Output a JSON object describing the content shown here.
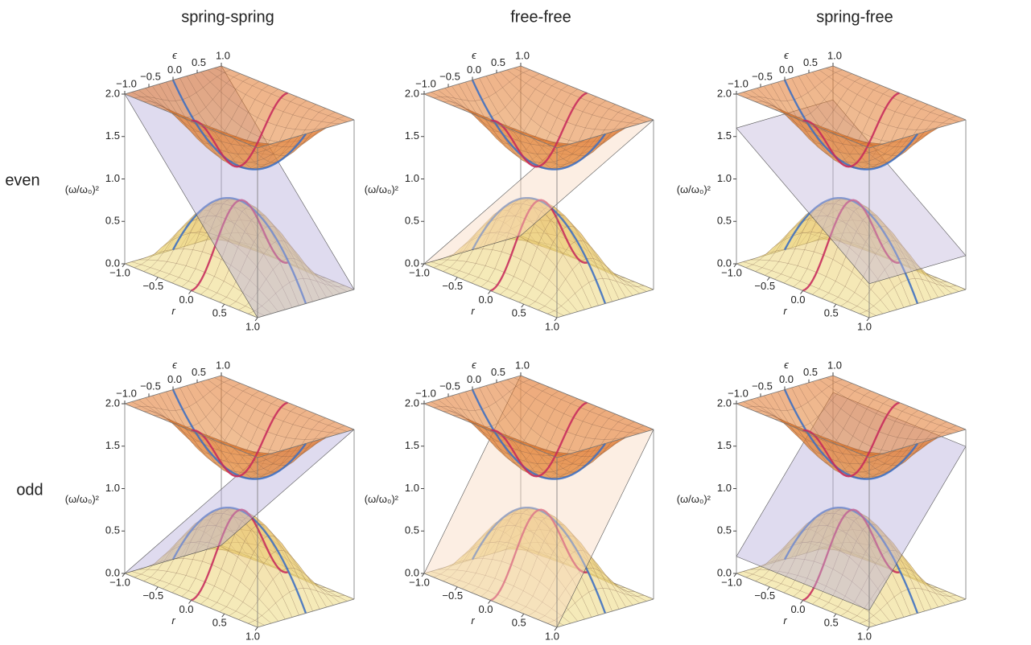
{
  "column_titles": [
    "spring-spring",
    "free-free",
    "spring-free"
  ],
  "row_labels": [
    "even",
    "odd"
  ],
  "chart_data": [
    {
      "type": "surface",
      "xlabel": "r",
      "ylabel": "ϵ",
      "zlabel": "(ω/ω₀)²",
      "xlim": [
        -1,
        1
      ],
      "ylim": [
        -1,
        1
      ],
      "zlim": [
        0,
        2
      ],
      "xticks": [
        {
          "value": -1,
          "label": "−1.0"
        },
        {
          "value": -0.5,
          "label": "−0.5"
        },
        {
          "value": 0,
          "label": "0.0"
        },
        {
          "value": 0.5,
          "label": "0.5"
        },
        {
          "value": 1,
          "label": "1.0"
        }
      ],
      "yticks": [
        {
          "value": -1,
          "label": "−1.0"
        },
        {
          "value": -0.5,
          "label": "−0.5"
        },
        {
          "value": 0,
          "label": "0.0"
        },
        {
          "value": 0.5,
          "label": "0.5"
        },
        {
          "value": 1,
          "label": "1.0"
        }
      ],
      "zticks": [
        {
          "value": 0,
          "label": "0.0"
        },
        0.5,
        {
          "value": 1,
          "label": "1.0"
        },
        1.5,
        {
          "value": 2,
          "label": "2.0"
        }
      ]
    },
    {
      "type": "surface",
      "xlabel": "r",
      "ylabel": "ϵ",
      "zlabel": "(ω/ω₀)²",
      "xlim": [
        -1,
        1
      ],
      "ylim": [
        -1,
        1
      ],
      "zlim": [
        0,
        2
      ],
      "xticks": [
        {
          "value": -1,
          "label": "−1.0"
        },
        {
          "value": -0.5,
          "label": "−0.5"
        },
        {
          "value": 0,
          "label": "0.0"
        },
        {
          "value": 0.5,
          "label": "0.5"
        },
        {
          "value": 1,
          "label": "1.0"
        }
      ],
      "yticks": [
        {
          "value": -1,
          "label": "−1.0"
        },
        {
          "value": -0.5,
          "label": "−0.5"
        },
        {
          "value": 0,
          "label": "0.0"
        },
        {
          "value": 0.5,
          "label": "0.5"
        },
        {
          "value": 1,
          "label": "1.0"
        }
      ],
      "zticks": [
        {
          "value": 0,
          "label": "0.0"
        },
        0.5,
        {
          "value": 1,
          "label": "1.0"
        },
        1.5,
        {
          "value": 2,
          "label": "2.0"
        }
      ]
    },
    {
      "type": "surface",
      "xlabel": "r",
      "ylabel": "ϵ",
      "zlabel": "(ω/ω₀)²",
      "xlim": [
        -1,
        1
      ],
      "ylim": [
        -1,
        1
      ],
      "zlim": [
        0,
        2
      ],
      "xticks": [
        {
          "value": -1,
          "label": "−1.0"
        },
        {
          "value": -0.5,
          "label": "−0.5"
        },
        {
          "value": 0,
          "label": "0.0"
        },
        {
          "value": 0.5,
          "label": "0.5"
        },
        {
          "value": 1,
          "label": "1.0"
        }
      ],
      "yticks": [
        {
          "value": -1,
          "label": "−1.0"
        },
        {
          "value": -0.5,
          "label": "−0.5"
        },
        {
          "value": 0,
          "label": "0.0"
        },
        {
          "value": 0.5,
          "label": "0.5"
        },
        {
          "value": 1,
          "label": "1.0"
        }
      ],
      "zticks": [
        {
          "value": 0,
          "label": "0.0"
        },
        0.5,
        {
          "value": 1,
          "label": "1.0"
        },
        1.5,
        {
          "value": 2,
          "label": "2.0"
        }
      ]
    },
    {
      "type": "surface",
      "xlabel": "r",
      "ylabel": "ϵ",
      "zlabel": "(ω/ω₀)²",
      "xlim": [
        -1,
        1
      ],
      "ylim": [
        -1,
        1
      ],
      "zlim": [
        0,
        2
      ],
      "xticks": [
        {
          "value": -1,
          "label": "−1.0"
        },
        {
          "value": -0.5,
          "label": "−0.5"
        },
        {
          "value": 0,
          "label": "0.0"
        },
        {
          "value": 0.5,
          "label": "0.5"
        },
        {
          "value": 1,
          "label": "1.0"
        }
      ],
      "yticks": [
        {
          "value": -1,
          "label": "−1.0"
        },
        {
          "value": -0.5,
          "label": "−0.5"
        },
        {
          "value": 0,
          "label": "0.0"
        },
        {
          "value": 0.5,
          "label": "0.5"
        },
        {
          "value": 1,
          "label": "1.0"
        }
      ],
      "zticks": [
        {
          "value": 0,
          "label": "0.0"
        },
        0.5,
        {
          "value": 1,
          "label": "1.0"
        },
        1.5,
        {
          "value": 2,
          "label": "2.0"
        }
      ]
    },
    {
      "type": "surface",
      "xlabel": "r",
      "ylabel": "ϵ",
      "zlabel": "(ω/ω₀)²",
      "xlim": [
        -1,
        1
      ],
      "ylim": [
        -1,
        1
      ],
      "zlim": [
        0,
        2
      ],
      "xticks": [
        {
          "value": -1,
          "label": "−1.0"
        },
        {
          "value": -0.5,
          "label": "−0.5"
        },
        {
          "value": 0,
          "label": "0.0"
        },
        {
          "value": 0.5,
          "label": "0.5"
        },
        {
          "value": 1,
          "label": "1.0"
        }
      ],
      "yticks": [
        {
          "value": -1,
          "label": "−1.0"
        },
        {
          "value": -0.5,
          "label": "−0.5"
        },
        {
          "value": 0,
          "label": "0.0"
        },
        {
          "value": 0.5,
          "label": "0.5"
        },
        {
          "value": 1,
          "label": "1.0"
        }
      ],
      "zticks": [
        {
          "value": 0,
          "label": "0.0"
        },
        0.5,
        {
          "value": 1,
          "label": "1.0"
        },
        1.5,
        {
          "value": 2,
          "label": "2.0"
        }
      ]
    },
    {
      "type": "surface",
      "xlabel": "r",
      "ylabel": "ϵ",
      "zlabel": "(ω/ω₀)²",
      "xlim": [
        -1,
        1
      ],
      "ylim": [
        -1,
        1
      ],
      "zlim": [
        0,
        2
      ],
      "xticks": [
        {
          "value": -1,
          "label": "−1.0"
        },
        {
          "value": -0.5,
          "label": "−0.5"
        },
        {
          "value": 0,
          "label": "0.0"
        },
        {
          "value": 0.5,
          "label": "0.5"
        },
        {
          "value": 1,
          "label": "1.0"
        }
      ],
      "yticks": [
        {
          "value": -1,
          "label": "−1.0"
        },
        {
          "value": -0.5,
          "label": "−0.5"
        },
        {
          "value": 0,
          "label": "0.0"
        },
        {
          "value": 0.5,
          "label": "0.5"
        },
        {
          "value": 1,
          "label": "1.0"
        }
      ],
      "zticks": [
        {
          "value": 0,
          "label": "0.0"
        },
        0.5,
        {
          "value": 1,
          "label": "1.0"
        },
        1.5,
        {
          "value": 2,
          "label": "2.0"
        }
      ]
    }
  ]
}
